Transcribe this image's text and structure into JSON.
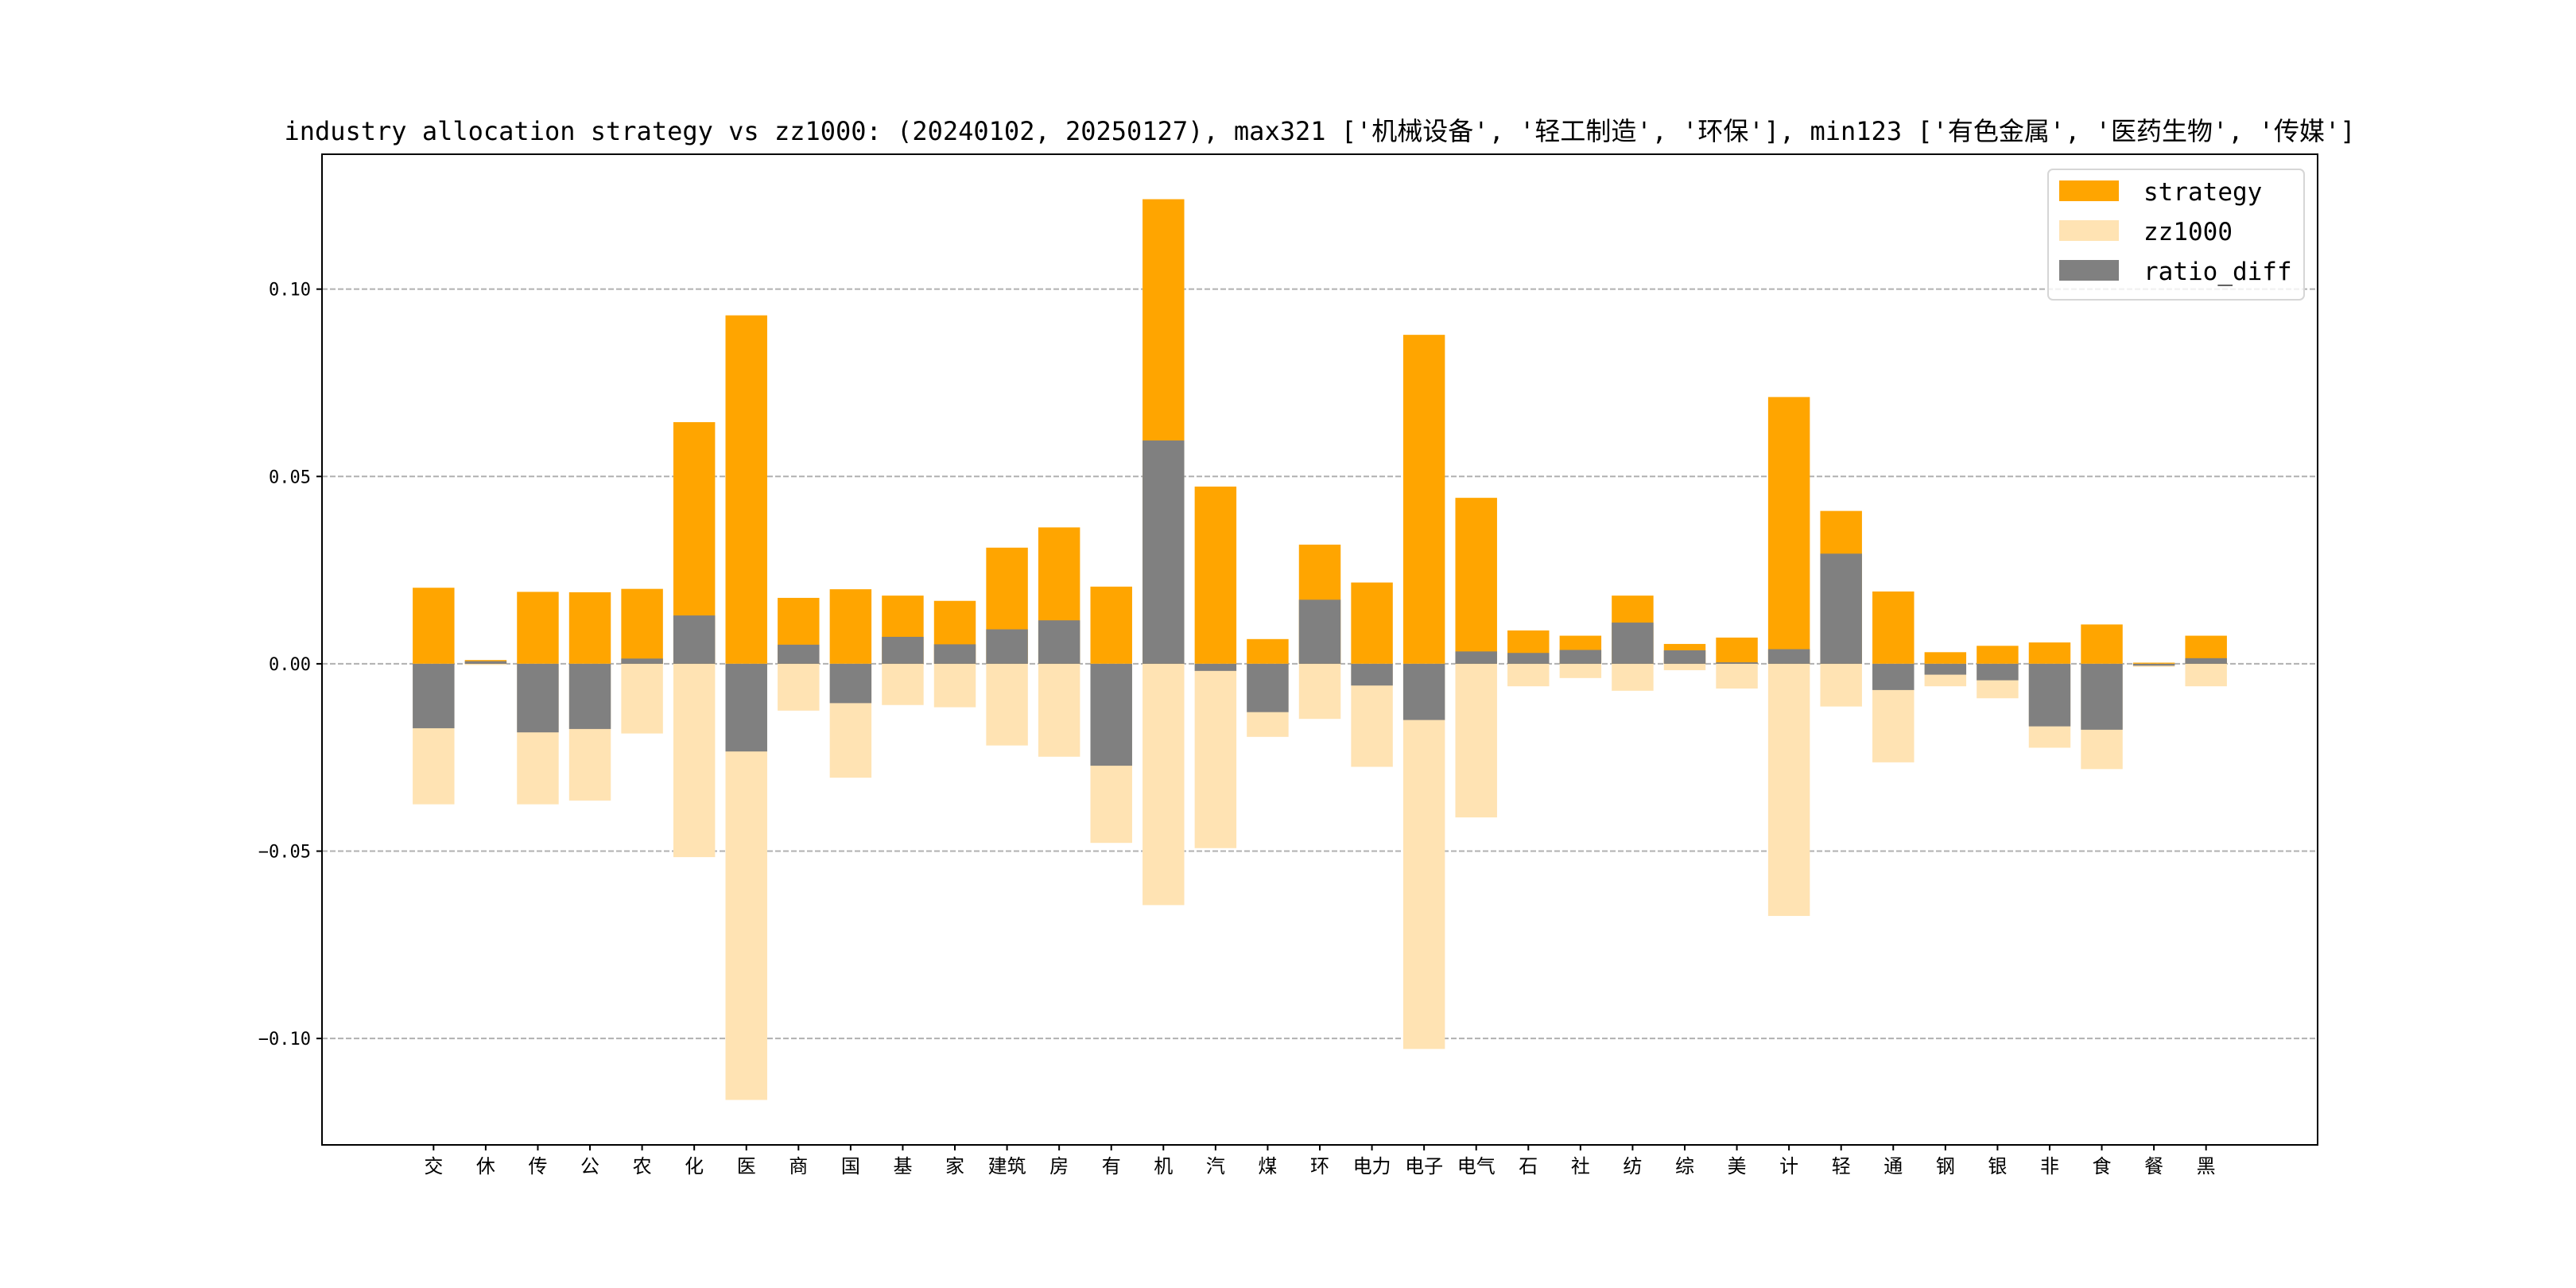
{
  "chart_data": {
    "type": "bar",
    "title": "industry allocation strategy vs zz1000: (20240102, 20250127), max321 ['机械设备', '轻工制造', '环保'], min123 ['有色金属', '医药生物', '传媒']",
    "xlabel": "",
    "ylabel": "",
    "ylim": [
      -0.1284,
      0.136
    ],
    "yticks": [
      0.1,
      0.05,
      0.0,
      -0.05,
      -0.1
    ],
    "ytick_labels": [
      "0.10",
      "0.05",
      "0.00",
      "−0.05",
      "−0.10"
    ],
    "grid": "y-dashed",
    "legend_position": "top-right",
    "categories": [
      "交",
      "休",
      "传",
      "公",
      "农",
      "化",
      "医",
      "商",
      "国",
      "基",
      "家",
      "建筑",
      "房",
      "有",
      "机",
      "汽",
      "煤",
      "环",
      "电力",
      "电子",
      "电气",
      "石",
      "社",
      "纺",
      "综",
      "美",
      "计",
      "轻",
      "通",
      "钢",
      "银",
      "非",
      "食",
      "餐",
      "黑"
    ],
    "series": [
      {
        "name": "strategy",
        "color": "#FFA500",
        "values": [
          0.0203,
          0.001,
          0.0192,
          0.0191,
          0.02,
          0.0645,
          0.093,
          0.0176,
          0.0199,
          0.0182,
          0.0168,
          0.031,
          0.0364,
          0.0206,
          0.124,
          0.0473,
          0.0066,
          0.0318,
          0.0217,
          0.0878,
          0.0443,
          0.0089,
          0.0075,
          0.0182,
          0.0053,
          0.007,
          0.0712,
          0.0408,
          0.0193,
          0.0031,
          0.0048,
          0.0057,
          0.0105,
          0.0003,
          0.0075
        ]
      },
      {
        "name": "zz1000",
        "color": "#FFE3B3",
        "values": [
          -0.0375,
          -0.0003,
          -0.0375,
          -0.0365,
          -0.0186,
          -0.0516,
          -0.1164,
          -0.0125,
          -0.0304,
          -0.011,
          -0.0116,
          -0.0218,
          -0.0248,
          -0.0478,
          -0.0644,
          -0.0492,
          -0.0195,
          -0.0147,
          -0.0275,
          -0.1028,
          -0.041,
          -0.006,
          -0.0038,
          -0.0072,
          -0.0017,
          -0.0066,
          -0.0673,
          -0.0114,
          -0.0263,
          -0.006,
          -0.0092,
          -0.0224,
          -0.0281,
          -0.0008,
          -0.006
        ]
      },
      {
        "name": "ratio_diff",
        "color": "#808080",
        "values": [
          -0.0172,
          0.0007,
          -0.0183,
          -0.0174,
          0.0014,
          0.0129,
          -0.0234,
          0.0051,
          -0.0105,
          0.0072,
          0.0052,
          0.0092,
          0.0116,
          -0.0272,
          0.0596,
          -0.0019,
          -0.0129,
          0.0171,
          -0.0058,
          -0.015,
          0.0033,
          0.0029,
          0.0037,
          0.011,
          0.0036,
          0.0004,
          0.0039,
          0.0294,
          -0.007,
          -0.0029,
          -0.0044,
          -0.0167,
          -0.0176,
          -0.0005,
          0.0015
        ]
      }
    ]
  }
}
